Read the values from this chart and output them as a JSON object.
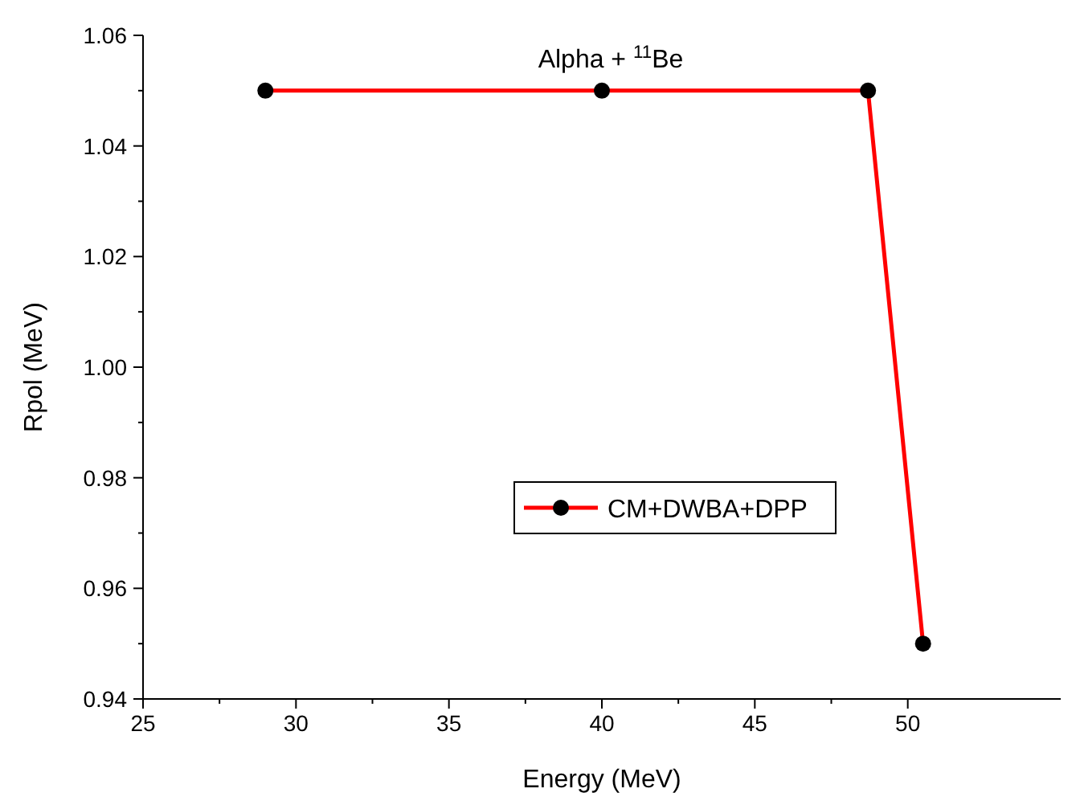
{
  "chart_data": {
    "type": "line",
    "title": "Alpha + $^{11}$Be",
    "xlabel": "Energy (MeV)",
    "ylabel": "Rpol (MeV)",
    "x": [
      29,
      40,
      48.7,
      50.5
    ],
    "series": [
      {
        "name": "CM+DWBA+DPP",
        "color": "#ff0000",
        "values": [
          1.05,
          1.05,
          1.05,
          0.95
        ]
      }
    ],
    "xlim": [
      25,
      55
    ],
    "xticks": [
      25,
      30,
      35,
      40,
      45,
      50
    ],
    "ylim": [
      0.94,
      1.06
    ],
    "yticks": [
      {
        "value": 0.94,
        "label": "0.94"
      },
      {
        "value": 0.96,
        "label": "0.96"
      },
      {
        "value": 0.98,
        "label": "0.98"
      },
      {
        "value": 1.0,
        "label": "1.00"
      },
      {
        "value": 1.02,
        "label": "1.02"
      },
      {
        "value": 1.04,
        "label": "1.04"
      },
      {
        "value": 1.06,
        "label": "1.06"
      }
    ],
    "marker": "circle",
    "line_style": "solid",
    "legend": "right",
    "grid": false
  }
}
